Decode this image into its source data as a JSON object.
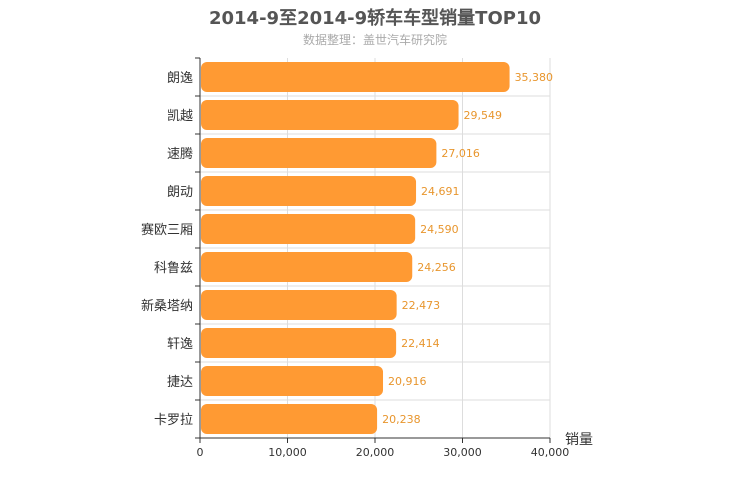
{
  "chart_data": {
    "type": "bar",
    "orientation": "horizontal",
    "title": "2014-9至2014-9轿车车型销量TOP10",
    "subtitle": "数据整理：盖世汽车研究院",
    "xlabel": "销量",
    "ylabel": "",
    "categories": [
      "朗逸",
      "凯越",
      "速腾",
      "朗动",
      "赛欧三厢",
      "科鲁兹",
      "新桑塔纳",
      "轩逸",
      "捷达",
      "卡罗拉"
    ],
    "values": [
      35380,
      29549,
      27016,
      24691,
      24590,
      24256,
      22473,
      22414,
      20916,
      20238
    ],
    "value_labels": [
      "35,380",
      "29,549",
      "27,016",
      "24,691",
      "24,590",
      "24,256",
      "22,473",
      "22,414",
      "20,916",
      "20,238"
    ],
    "xlim": [
      0,
      40000
    ],
    "xticks": [
      0,
      10000,
      20000,
      30000,
      40000
    ],
    "xtick_labels": [
      "0",
      "10,000",
      "20,000",
      "30,000",
      "40,000"
    ],
    "grid": true,
    "bar_color": "#ff9a33",
    "value_label_color": "#e8962e"
  }
}
